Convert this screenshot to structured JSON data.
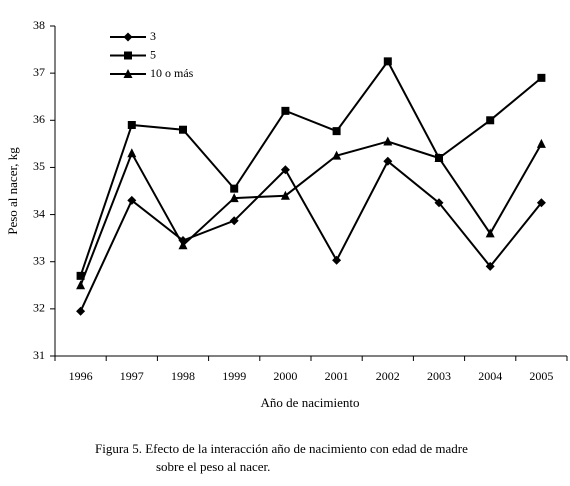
{
  "chart_data": {
    "type": "line",
    "x_label": "Año de nacimiento",
    "y_label": "Peso al nacer, kg",
    "caption": [
      "Figura 5. Efecto de la interacción año de nacimiento con edad de madre",
      "sobre el peso al nacer."
    ],
    "categories": [
      "1996",
      "1997",
      "1998",
      "1999",
      "2000",
      "2001",
      "2002",
      "2003",
      "2004",
      "2005"
    ],
    "series": [
      {
        "name": "3",
        "color": "#000000",
        "marker": "diamond",
        "values": [
          31.95,
          34.3,
          33.45,
          33.87,
          34.95,
          33.03,
          35.13,
          34.25,
          32.9,
          34.25
        ]
      },
      {
        "name": "5",
        "color": "#000000",
        "marker": "square",
        "values": [
          32.7,
          35.9,
          35.8,
          34.55,
          36.2,
          35.77,
          37.25,
          35.2,
          36.0,
          36.9
        ]
      },
      {
        "name": "10 o más",
        "color": "#000000",
        "marker": "triangle",
        "values": [
          32.5,
          35.3,
          33.35,
          34.35,
          34.4,
          35.25,
          35.55,
          35.2,
          33.6,
          35.5
        ]
      }
    ],
    "ylim": [
      31,
      38
    ],
    "yticks": [
      31,
      32,
      33,
      34,
      35,
      36,
      37,
      38
    ],
    "legend": "top-left"
  }
}
